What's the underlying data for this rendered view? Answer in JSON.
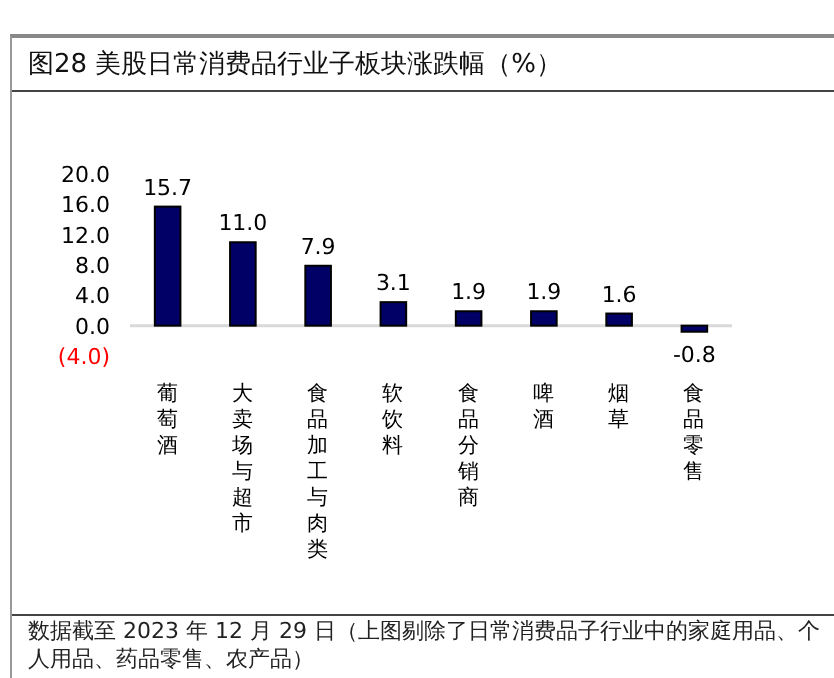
{
  "chart_data": {
    "type": "bar",
    "title": "图28 美股日常消费品行业子板块涨跌幅（%）",
    "categories": [
      "葡萄酒",
      "大卖场与超市",
      "食品加工与肉类",
      "软饮料",
      "食品分销商",
      "啤酒",
      "烟草",
      "食品零售"
    ],
    "values": [
      15.7,
      11.0,
      7.9,
      3.1,
      1.9,
      1.9,
      1.6,
      -0.8
    ],
    "value_labels": [
      "15.7",
      "11.0",
      "7.9",
      "3.1",
      "1.9",
      "1.9",
      "1.6",
      "-0.8"
    ],
    "color": "#000066",
    "ylim": [
      -4,
      20
    ],
    "yticks": [
      {
        "value": -4,
        "label": "(4.0)"
      },
      {
        "value": 0,
        "label": "0.0"
      },
      {
        "value": 4,
        "label": "4.0"
      },
      {
        "value": 8,
        "label": "8.0"
      },
      {
        "value": 12,
        "label": "12.0"
      },
      {
        "value": 16,
        "label": "16.0"
      },
      {
        "value": 20,
        "label": "20.0"
      }
    ],
    "annotations": [
      "数据截至 2023 年 12 月 29 日（上图剔除了日常消费品子行业中的家庭用品、个人用品、药品零售、农产品）"
    ]
  }
}
